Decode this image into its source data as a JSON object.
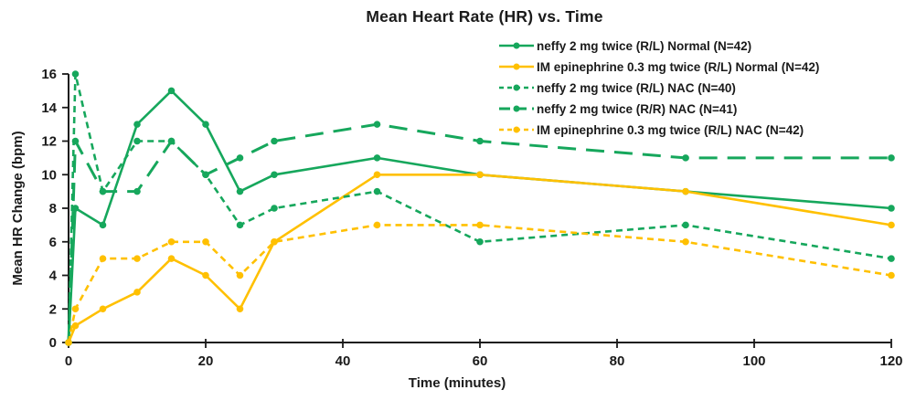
{
  "title": "Mean Heart Rate (HR) vs. Time",
  "colors": {
    "green": "#16A75C",
    "gold": "#FFC000",
    "axis": "#1a1a1a"
  },
  "chart_data": {
    "type": "line",
    "title": "Mean Heart Rate (HR) vs. Time",
    "xlabel": "Time (minutes)",
    "ylabel": "Mean HR Change (bpm)",
    "xlim": [
      0,
      120
    ],
    "ylim": [
      0,
      16
    ],
    "x_ticks": [
      0,
      20,
      40,
      60,
      80,
      100,
      120
    ],
    "y_ticks": [
      0,
      2,
      4,
      6,
      8,
      10,
      12,
      14,
      16
    ],
    "grid": false,
    "legend_position": "top-right",
    "x": [
      0,
      1,
      5,
      10,
      15,
      20,
      25,
      30,
      45,
      60,
      90,
      120
    ],
    "series": [
      {
        "name": "neffy 2 mg twice (R/L) Normal (N=42)",
        "color": "#16A75C",
        "dash": "solid",
        "values": [
          0,
          8,
          7,
          13,
          15,
          13,
          9,
          10,
          11,
          10,
          9,
          8
        ]
      },
      {
        "name": "IM epinephrine 0.3 mg twice (R/L) Normal (N=42)",
        "color": "#FFC000",
        "dash": "solid",
        "values": [
          0,
          1,
          2,
          3,
          5,
          4,
          2,
          6,
          10,
          10,
          9,
          7
        ]
      },
      {
        "name": "neffy 2 mg twice (R/L) NAC (N=40)",
        "color": "#16A75C",
        "dash": "short",
        "values": [
          0,
          16,
          9,
          12,
          12,
          10,
          7,
          8,
          9,
          6,
          7,
          5
        ]
      },
      {
        "name": "neffy 2 mg twice (R/R) NAC (N=41)",
        "color": "#16A75C",
        "dash": "long",
        "values": [
          0,
          12,
          9,
          9,
          12,
          10,
          11,
          12,
          13,
          12,
          11,
          11
        ]
      },
      {
        "name": "IM epinephrine 0.3 mg twice (R/L) NAC (N=42)",
        "color": "#FFC000",
        "dash": "short",
        "values": [
          0,
          2,
          5,
          5,
          6,
          6,
          4,
          6,
          7,
          7,
          6,
          4
        ]
      }
    ]
  }
}
